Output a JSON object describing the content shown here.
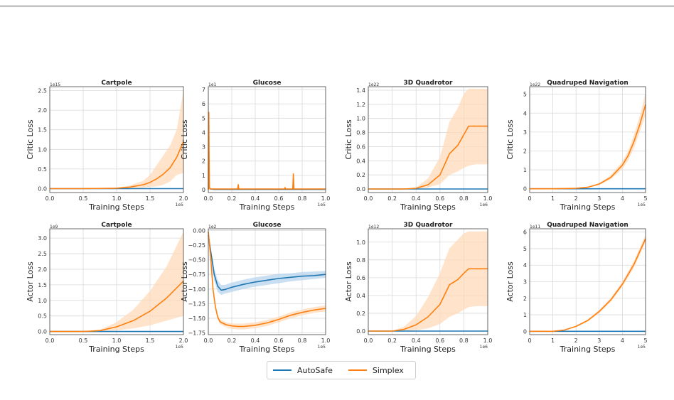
{
  "colors": {
    "autosafe": "#1f77b4",
    "simplex": "#ff7f0e",
    "band": "#ffd9b8",
    "band_blue": "#b8d6ee",
    "grid": "#d9d9d9"
  },
  "legend": {
    "entries": [
      {
        "name": "AutoSafe",
        "color": "#1f77b4"
      },
      {
        "name": "Simplex",
        "color": "#ff7f0e"
      }
    ],
    "placement": "bottom-center"
  },
  "chart_data": [
    {
      "type": "line",
      "title": "Cartpole",
      "xlabel": "Training Steps",
      "ylabel": "Critic Loss",
      "xlim": [
        0,
        2.0
      ],
      "ylim": [
        -0.1,
        2.6
      ],
      "x_multiplier": "1e5",
      "y_multiplier": "1e15",
      "xticks": [
        "0.0",
        "0.5",
        "1.0",
        "1.5",
        "2.0"
      ],
      "xtick_values": [
        0,
        0.5,
        1.0,
        1.5,
        2.0
      ],
      "yticks": [
        "0.0",
        "0.5",
        "1.0",
        "1.5",
        "2.0",
        "2.5"
      ],
      "ytick_values": [
        0,
        0.5,
        1.0,
        1.5,
        2.0,
        2.5
      ],
      "series": [
        {
          "name": "AutoSafe",
          "x": [
            0,
            0.5,
            1.0,
            1.5,
            2.0
          ],
          "values": [
            0,
            0,
            0,
            0,
            0
          ]
        },
        {
          "name": "Simplex",
          "x": [
            0,
            0.5,
            1.0,
            1.2,
            1.4,
            1.5,
            1.6,
            1.7,
            1.8,
            1.9,
            2.0
          ],
          "values": [
            0,
            0,
            0.01,
            0.04,
            0.1,
            0.16,
            0.25,
            0.37,
            0.53,
            0.8,
            1.2
          ]
        }
      ],
      "band": {
        "x": [
          0,
          0.5,
          1.0,
          1.2,
          1.4,
          1.5,
          1.6,
          1.7,
          1.8,
          1.9,
          2.0
        ],
        "lower": [
          0,
          0,
          0,
          0,
          0.02,
          0.04,
          0.06,
          0.1,
          0.18,
          0.35,
          0.4
        ],
        "upper": [
          0,
          0,
          0.02,
          0.08,
          0.2,
          0.35,
          0.6,
          0.85,
          1.1,
          1.5,
          2.5
        ]
      }
    },
    {
      "type": "line",
      "title": "Glucose",
      "xlabel": "Training Steps",
      "ylabel": "Critic Loss",
      "xlim": [
        0,
        1.0
      ],
      "ylim": [
        -0.2,
        7.2
      ],
      "x_multiplier": "1e5",
      "y_multiplier": "1e1",
      "xticks": [
        "0.0",
        "0.2",
        "0.4",
        "0.6",
        "0.8",
        "1.0"
      ],
      "xtick_values": [
        0,
        0.2,
        0.4,
        0.6,
        0.8,
        1.0
      ],
      "yticks": [
        "0",
        "1",
        "2",
        "3",
        "4",
        "5",
        "6",
        "7"
      ],
      "ytick_values": [
        0,
        1,
        2,
        3,
        4,
        5,
        6,
        7
      ],
      "series": [
        {
          "name": "AutoSafe",
          "x": [
            0,
            0.01,
            0.02,
            0.05,
            1.0
          ],
          "values": [
            0.1,
            0.12,
            0.05,
            0.02,
            0.02
          ]
        },
        {
          "name": "Simplex",
          "x": [
            0,
            0.002,
            0.004,
            0.006,
            0.01,
            0.02,
            0.25,
            0.255,
            0.26,
            0.3,
            0.65,
            0.655,
            0.66,
            0.72,
            0.725,
            0.73,
            0.74,
            1.0
          ],
          "values": [
            0,
            5.4,
            5.4,
            3.0,
            0.1,
            0.05,
            0.05,
            0.35,
            0.05,
            0.05,
            0.05,
            0.15,
            0.05,
            0.05,
            1.1,
            0.05,
            0.05,
            0.05
          ]
        }
      ],
      "band": {
        "x": [
          0,
          0.002,
          0.004,
          0.006,
          0.01,
          0.02,
          0.25,
          0.255,
          0.26,
          0.72,
          0.725,
          0.73,
          1.0
        ],
        "lower": [
          0,
          0,
          0,
          0,
          0,
          0,
          0,
          0,
          0,
          0,
          0,
          0,
          0
        ],
        "upper": [
          0,
          7.0,
          7.0,
          4.0,
          0.2,
          0.1,
          0.1,
          0.45,
          0.1,
          0.1,
          1.5,
          0.1,
          0.1
        ]
      }
    },
    {
      "type": "line",
      "title": "3D Quadrotor",
      "xlabel": "Training Steps",
      "ylabel": "Critic Loss",
      "xlim": [
        0,
        1.0
      ],
      "ylim": [
        -0.05,
        1.45
      ],
      "x_multiplier": "1e6",
      "y_multiplier": "1e22",
      "xticks": [
        "0.0",
        "0.2",
        "0.4",
        "0.6",
        "0.8",
        "1.0"
      ],
      "xtick_values": [
        0,
        0.2,
        0.4,
        0.6,
        0.8,
        1.0
      ],
      "yticks": [
        "0.0",
        "0.2",
        "0.4",
        "0.6",
        "0.8",
        "1.0",
        "1.2",
        "1.4"
      ],
      "ytick_values": [
        0,
        0.2,
        0.4,
        0.6,
        0.8,
        1.0,
        1.2,
        1.4
      ],
      "series": [
        {
          "name": "AutoSafe",
          "x": [
            0,
            1.0
          ],
          "values": [
            0,
            0
          ]
        },
        {
          "name": "Simplex",
          "x": [
            0,
            0.3,
            0.4,
            0.5,
            0.6,
            0.68,
            0.75,
            0.8,
            0.84,
            0.9,
            1.0
          ],
          "values": [
            0,
            0,
            0.01,
            0.06,
            0.2,
            0.5,
            0.62,
            0.77,
            0.89,
            0.89,
            0.89
          ]
        }
      ],
      "band": {
        "x": [
          0,
          0.3,
          0.4,
          0.5,
          0.6,
          0.68,
          0.75,
          0.8,
          0.84,
          0.9,
          1.0
        ],
        "lower": [
          0,
          0,
          0,
          0.02,
          0.07,
          0.2,
          0.25,
          0.3,
          0.33,
          0.35,
          0.35
        ],
        "upper": [
          0,
          0,
          0.02,
          0.15,
          0.45,
          0.95,
          1.15,
          1.35,
          1.42,
          1.42,
          1.42
        ]
      }
    },
    {
      "type": "line",
      "title": "Quadruped Navigation",
      "xlabel": "Training Steps",
      "ylabel": "Critic Loss",
      "xlim": [
        0,
        5
      ],
      "ylim": [
        -0.2,
        5.4
      ],
      "x_multiplier": "1e5",
      "y_multiplier": "1e22",
      "xticks": [
        "0",
        "1",
        "2",
        "3",
        "4",
        "5"
      ],
      "xtick_values": [
        0,
        1,
        2,
        3,
        4,
        5
      ],
      "yticks": [
        "0",
        "1",
        "2",
        "3",
        "4",
        "5"
      ],
      "ytick_values": [
        0,
        1,
        2,
        3,
        4,
        5
      ],
      "series": [
        {
          "name": "AutoSafe",
          "x": [
            0,
            5
          ],
          "values": [
            0,
            0
          ]
        },
        {
          "name": "Simplex",
          "x": [
            0,
            1,
            2,
            2.5,
            3,
            3.5,
            4,
            4.25,
            4.5,
            4.75,
            5
          ],
          "values": [
            0,
            0,
            0.02,
            0.08,
            0.25,
            0.6,
            1.25,
            1.75,
            2.5,
            3.4,
            4.45
          ]
        }
      ],
      "band": {
        "x": [
          0,
          1,
          2,
          2.5,
          3,
          3.5,
          4,
          4.25,
          4.5,
          4.75,
          5
        ],
        "lower": [
          0,
          0,
          0.01,
          0.06,
          0.2,
          0.5,
          1.05,
          1.5,
          2.15,
          3.0,
          3.9
        ],
        "upper": [
          0,
          0,
          0.03,
          0.1,
          0.3,
          0.72,
          1.45,
          2.0,
          2.85,
          3.85,
          5.1
        ]
      }
    },
    {
      "type": "line",
      "title": "Cartpole",
      "xlabel": "Training Steps",
      "ylabel": "Actor Loss",
      "xlim": [
        0,
        2.0
      ],
      "ylim": [
        -0.1,
        3.3
      ],
      "x_multiplier": "1e5",
      "y_multiplier": "1e9",
      "xticks": [
        "0.0",
        "0.5",
        "1.0",
        "1.5",
        "2.0"
      ],
      "xtick_values": [
        0,
        0.5,
        1.0,
        1.5,
        2.0
      ],
      "yticks": [
        "0.0",
        "0.5",
        "1.0",
        "1.5",
        "2.0",
        "2.5",
        "3.0"
      ],
      "ytick_values": [
        0,
        0.5,
        1.0,
        1.5,
        2.0,
        2.5,
        3.0
      ],
      "series": [
        {
          "name": "AutoSafe",
          "x": [
            0,
            2.0
          ],
          "values": [
            0,
            0
          ]
        },
        {
          "name": "Simplex",
          "x": [
            0,
            0.5,
            0.75,
            1.0,
            1.25,
            1.5,
            1.75,
            2.0
          ],
          "values": [
            0,
            0,
            0.03,
            0.15,
            0.35,
            0.65,
            1.08,
            1.62
          ]
        }
      ],
      "band": {
        "x": [
          0,
          0.5,
          0.75,
          1.0,
          1.25,
          1.5,
          1.75,
          2.0
        ],
        "lower": [
          0,
          0,
          0.01,
          0.04,
          0.1,
          0.2,
          0.35,
          0.5
        ],
        "upper": [
          0,
          0,
          0.05,
          0.3,
          0.7,
          1.3,
          2.1,
          3.2
        ]
      }
    },
    {
      "type": "line",
      "title": "Glucose",
      "xlabel": "Training Steps",
      "ylabel": "Actor Loss",
      "xlim": [
        0,
        1.0
      ],
      "ylim": [
        -1.78,
        0.03
      ],
      "x_multiplier": "1e5",
      "y_multiplier": "1e2",
      "xticks": [
        "0.0",
        "0.2",
        "0.4",
        "0.6",
        "0.8",
        "1.0"
      ],
      "xtick_values": [
        0,
        0.2,
        0.4,
        0.6,
        0.8,
        1.0
      ],
      "yticks": [
        "0.00",
        "−0.25",
        "−0.50",
        "−0.75",
        "−1.00",
        "−1.25",
        "−1.50",
        "−1.75"
      ],
      "ytick_values": [
        0,
        -0.25,
        -0.5,
        -0.75,
        -1.0,
        -1.25,
        -1.5,
        -1.75
      ],
      "series": [
        {
          "name": "AutoSafe",
          "x": [
            0,
            0.02,
            0.05,
            0.08,
            0.11,
            0.14,
            0.2,
            0.3,
            0.4,
            0.5,
            0.6,
            0.7,
            0.8,
            0.9,
            1.0
          ],
          "values": [
            -0.08,
            -0.35,
            -0.75,
            -0.95,
            -1.02,
            -1.01,
            -0.97,
            -0.92,
            -0.88,
            -0.85,
            -0.82,
            -0.8,
            -0.78,
            -0.77,
            -0.75
          ]
        },
        {
          "name": "Simplex",
          "x": [
            0,
            0.02,
            0.04,
            0.06,
            0.08,
            0.1,
            0.15,
            0.2,
            0.25,
            0.3,
            0.35,
            0.4,
            0.5,
            0.6,
            0.7,
            0.8,
            0.9,
            1.0
          ],
          "values": [
            -0.02,
            -0.45,
            -1.0,
            -1.3,
            -1.48,
            -1.56,
            -1.61,
            -1.63,
            -1.64,
            -1.64,
            -1.63,
            -1.62,
            -1.58,
            -1.52,
            -1.45,
            -1.4,
            -1.36,
            -1.33
          ]
        }
      ],
      "band": {
        "x": [
          0,
          0.02,
          0.05,
          0.08,
          0.11,
          0.14,
          0.2,
          0.3,
          0.4,
          0.5,
          0.6,
          0.7,
          0.8,
          0.9,
          1.0
        ],
        "lower": [
          -0.12,
          -0.42,
          -0.85,
          -1.05,
          -1.1,
          -1.08,
          -1.05,
          -1.0,
          -0.96,
          -0.93,
          -0.9,
          -0.87,
          -0.85,
          -0.83,
          -0.81
        ],
        "upper": [
          -0.04,
          -0.28,
          -0.65,
          -0.85,
          -0.93,
          -0.93,
          -0.89,
          -0.84,
          -0.8,
          -0.77,
          -0.74,
          -0.73,
          -0.71,
          -0.7,
          -0.69
        ]
      },
      "band2": {
        "x": [
          0,
          0.02,
          0.04,
          0.06,
          0.08,
          0.1,
          0.15,
          0.2,
          0.25,
          0.3,
          0.35,
          0.4,
          0.5,
          0.6,
          0.7,
          0.8,
          0.9,
          1.0
        ],
        "lower": [
          -0.03,
          -0.5,
          -1.05,
          -1.34,
          -1.52,
          -1.6,
          -1.65,
          -1.68,
          -1.69,
          -1.69,
          -1.68,
          -1.67,
          -1.63,
          -1.57,
          -1.5,
          -1.45,
          -1.41,
          -1.38
        ],
        "upper": [
          -0.01,
          -0.4,
          -0.95,
          -1.26,
          -1.44,
          -1.52,
          -1.57,
          -1.59,
          -1.59,
          -1.59,
          -1.58,
          -1.57,
          -1.53,
          -1.47,
          -1.4,
          -1.35,
          -1.31,
          -1.28
        ]
      }
    },
    {
      "type": "line",
      "title": "3D Quadrotor",
      "xlabel": "Training Steps",
      "ylabel": "Actor Loss",
      "xlim": [
        0,
        1.0
      ],
      "ylim": [
        -0.04,
        1.15
      ],
      "x_multiplier": "1e6",
      "y_multiplier": "1e12",
      "xticks": [
        "0.0",
        "0.2",
        "0.4",
        "0.6",
        "0.8",
        "1.0"
      ],
      "xtick_values": [
        0,
        0.2,
        0.4,
        0.6,
        0.8,
        1.0
      ],
      "yticks": [
        "0.0",
        "0.2",
        "0.4",
        "0.6",
        "0.8",
        "1.0"
      ],
      "ytick_values": [
        0,
        0.2,
        0.4,
        0.6,
        0.8,
        1.0
      ],
      "series": [
        {
          "name": "AutoSafe",
          "x": [
            0,
            1.0
          ],
          "values": [
            0,
            0
          ]
        },
        {
          "name": "Simplex",
          "x": [
            0,
            0.2,
            0.3,
            0.4,
            0.5,
            0.6,
            0.68,
            0.75,
            0.8,
            0.84,
            0.9,
            1.0
          ],
          "values": [
            0,
            0,
            0.02,
            0.07,
            0.16,
            0.3,
            0.52,
            0.58,
            0.65,
            0.7,
            0.7,
            0.7
          ]
        }
      ],
      "band": {
        "x": [
          0,
          0.2,
          0.3,
          0.4,
          0.5,
          0.6,
          0.68,
          0.75,
          0.8,
          0.84,
          0.9,
          1.0
        ],
        "lower": [
          0,
          0,
          0,
          0.01,
          0.03,
          0.08,
          0.16,
          0.2,
          0.24,
          0.27,
          0.28,
          0.28
        ],
        "upper": [
          0,
          0,
          0.05,
          0.17,
          0.38,
          0.65,
          0.93,
          1.03,
          1.1,
          1.12,
          1.12,
          1.12
        ]
      }
    },
    {
      "type": "line",
      "title": "Quadruped Navigation",
      "xlabel": "Training Steps",
      "ylabel": "Actor Loss",
      "xlim": [
        0,
        5
      ],
      "ylim": [
        -0.2,
        6.2
      ],
      "x_multiplier": "1e5",
      "y_multiplier": "1e11",
      "xticks": [
        "0",
        "1",
        "2",
        "3",
        "4",
        "5"
      ],
      "xtick_values": [
        0,
        1,
        2,
        3,
        4,
        5
      ],
      "yticks": [
        "0",
        "1",
        "2",
        "3",
        "4",
        "5",
        "6"
      ],
      "ytick_values": [
        0,
        1,
        2,
        3,
        4,
        5,
        6
      ],
      "series": [
        {
          "name": "AutoSafe",
          "x": [
            0,
            5
          ],
          "values": [
            0,
            0
          ]
        },
        {
          "name": "Simplex",
          "x": [
            0,
            1,
            1.5,
            2,
            2.5,
            3,
            3.5,
            4,
            4.5,
            5
          ],
          "values": [
            0,
            0,
            0.08,
            0.3,
            0.65,
            1.2,
            1.9,
            2.85,
            4.05,
            5.6
          ]
        }
      ],
      "band": {
        "x": [
          0,
          1,
          1.5,
          2,
          2.5,
          3,
          3.5,
          4,
          4.5,
          5
        ],
        "lower": [
          0,
          0,
          0.06,
          0.26,
          0.58,
          1.1,
          1.78,
          2.7,
          3.85,
          5.4
        ],
        "upper": [
          0,
          0,
          0.1,
          0.34,
          0.72,
          1.3,
          2.02,
          3.0,
          4.25,
          5.85
        ]
      }
    }
  ]
}
